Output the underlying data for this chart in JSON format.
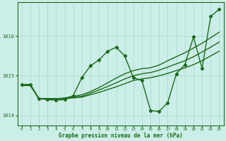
{
  "background_color": "#cceee8",
  "grid_color": "#aad4ce",
  "line_color": "#1a6b1a",
  "xlabel": "Graphe pression niveau de la mer (hPa)",
  "xlim": [
    -0.5,
    23.5
  ],
  "ylim": [
    1013.75,
    1016.85
  ],
  "yticks": [
    1014,
    1015,
    1016
  ],
  "xticks": [
    0,
    1,
    2,
    3,
    4,
    5,
    6,
    7,
    8,
    9,
    10,
    11,
    12,
    13,
    14,
    15,
    16,
    17,
    18,
    19,
    20,
    21,
    22,
    23
  ],
  "series": [
    {
      "x": [
        0,
        1,
        2,
        3,
        4,
        5,
        6,
        7,
        8,
        9,
        10,
        11,
        12,
        13,
        14,
        15,
        16,
        17,
        18,
        19,
        20,
        21,
        22,
        23
      ],
      "y": [
        1014.75,
        1014.75,
        1014.42,
        1014.42,
        1014.42,
        1014.42,
        1014.44,
        1014.46,
        1014.52,
        1014.58,
        1014.65,
        1014.72,
        1014.8,
        1014.88,
        1014.92,
        1014.95,
        1015.0,
        1015.06,
        1015.13,
        1015.2,
        1015.28,
        1015.38,
        1015.5,
        1015.62
      ],
      "marker": null,
      "linewidth": 1.0
    },
    {
      "x": [
        0,
        1,
        2,
        3,
        4,
        5,
        6,
        7,
        8,
        9,
        10,
        11,
        12,
        13,
        14,
        15,
        16,
        17,
        18,
        19,
        20,
        21,
        22,
        23
      ],
      "y": [
        1014.78,
        1014.78,
        1014.42,
        1014.42,
        1014.42,
        1014.43,
        1014.46,
        1014.48,
        1014.56,
        1014.64,
        1014.73,
        1014.82,
        1014.92,
        1015.0,
        1015.05,
        1015.08,
        1015.14,
        1015.22,
        1015.3,
        1015.38,
        1015.48,
        1015.6,
        1015.72,
        1015.85
      ],
      "marker": null,
      "linewidth": 1.0
    },
    {
      "x": [
        0,
        1,
        2,
        3,
        4,
        5,
        6,
        7,
        8,
        9,
        10,
        11,
        12,
        13,
        14,
        15,
        16,
        17,
        18,
        19,
        20,
        21,
        22,
        23
      ],
      "y": [
        1014.78,
        1014.78,
        1014.42,
        1014.42,
        1014.42,
        1014.44,
        1014.48,
        1014.52,
        1014.6,
        1014.7,
        1014.82,
        1014.94,
        1015.05,
        1015.13,
        1015.18,
        1015.2,
        1015.27,
        1015.38,
        1015.48,
        1015.58,
        1015.7,
        1015.82,
        1015.96,
        1016.1
      ],
      "marker": null,
      "linewidth": 1.0
    },
    {
      "x": [
        0,
        1,
        2,
        3,
        4,
        5,
        6,
        7,
        8,
        9,
        10,
        11,
        12,
        13,
        14,
        15,
        16,
        17,
        18,
        19,
        20,
        21,
        22,
        23
      ],
      "y": [
        1014.78,
        1014.78,
        1014.42,
        1014.4,
        1014.38,
        1014.4,
        1014.5,
        1014.95,
        1015.25,
        1015.4,
        1015.62,
        1015.72,
        1015.5,
        1014.95,
        1014.88,
        1014.12,
        1014.1,
        1014.32,
        1015.05,
        1015.28,
        1015.98,
        1015.18,
        1016.5,
        1016.68
      ],
      "marker": "D",
      "markersize": 2.2,
      "linewidth": 1.0
    }
  ]
}
